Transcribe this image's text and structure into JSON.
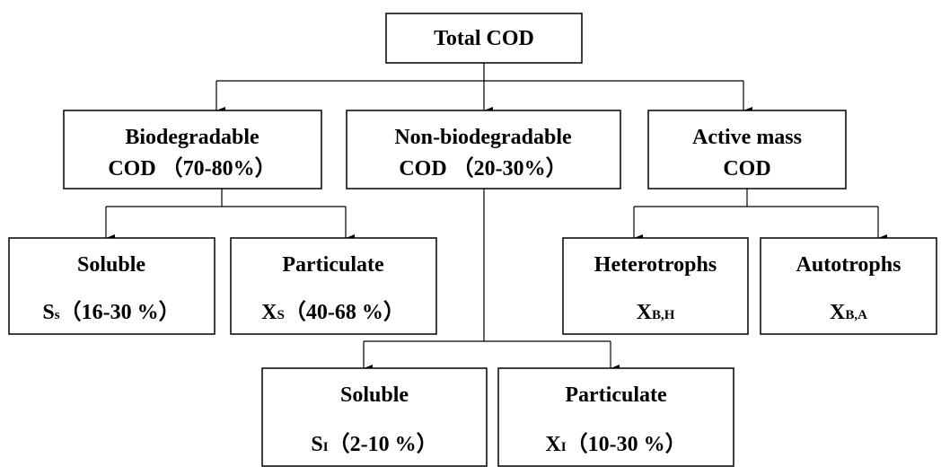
{
  "nodes": [
    {
      "lines": [
        "Total COD"
      ]
    },
    {
      "lines": [
        "Biodegradable",
        "COD （70-80%）"
      ]
    },
    {
      "lines": [
        "Non-biodegradable",
        "COD （20-30%）"
      ]
    },
    {
      "lines": [
        "Active mass",
        "COD"
      ]
    },
    {
      "label": "Soluble",
      "symbol": "S",
      "subscript": "s",
      "range": "（16-30 %）"
    },
    {
      "label": "Particulate",
      "symbol": "X",
      "subscript": "S",
      "range": "（40-68 %）"
    },
    {
      "label": "Heterotrophs",
      "symbol": "X",
      "subscript": "B,H"
    },
    {
      "label": "Autotrophs",
      "symbol": "X",
      "subscript": "B,A"
    },
    {
      "label": "Soluble",
      "symbol": "S",
      "subscript": "I",
      "range": "（2-10 %）"
    },
    {
      "label": "Particulate",
      "symbol": "X",
      "subscript": "I",
      "range": "（10-30 %）"
    }
  ]
}
